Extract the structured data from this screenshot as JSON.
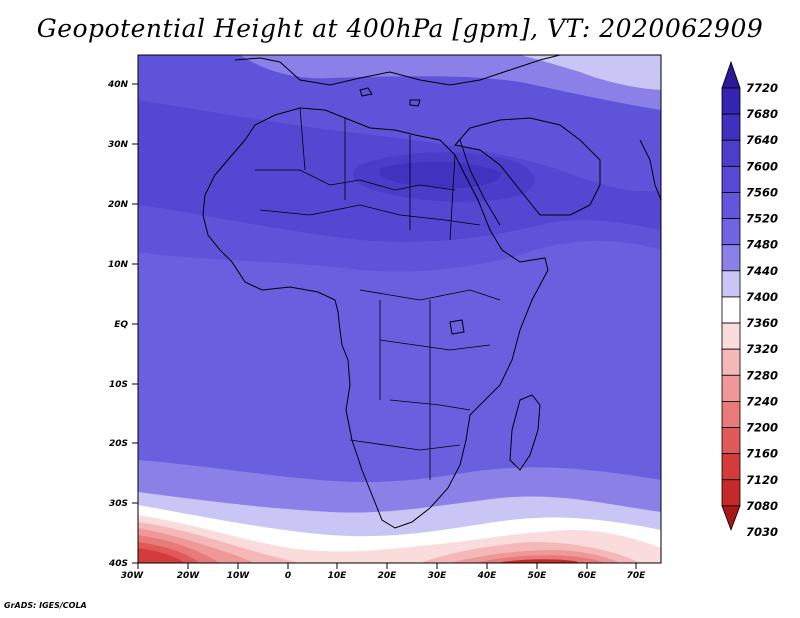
{
  "title": "Geopotential Height at 400hPa [gpm], VT: 2020062909",
  "credit": "GrADS: IGES/COLA",
  "lat_labels": [
    "40N",
    "30N",
    "20N",
    "10N",
    "EQ",
    "10S",
    "20S",
    "30S",
    "40S"
  ],
  "lon_labels": [
    "30W",
    "20W",
    "10W",
    "0",
    "10E",
    "20E",
    "30E",
    "40E",
    "50E",
    "60E",
    "70E"
  ],
  "colorbar": {
    "labels": [
      "7720",
      "7680",
      "7640",
      "7600",
      "7560",
      "7520",
      "7480",
      "7440",
      "7400",
      "7360",
      "7320",
      "7280",
      "7240",
      "7200",
      "7160",
      "7120",
      "7080",
      "7030"
    ],
    "colors": [
      "#2a1a9a",
      "#3424b0",
      "#3e31c0",
      "#4a3ecb",
      "#5649d4",
      "#6256dc",
      "#7064e2",
      "#8a80e8",
      "#c9c6f5",
      "#ffffff",
      "#fadcdc",
      "#f5b8b8",
      "#ee9898",
      "#e87a7a",
      "#e05a5a",
      "#d43c3c",
      "#c42a2a",
      "#a81616"
    ]
  },
  "map": {
    "lon_range": [
      -30,
      75
    ],
    "lat_range": [
      -40,
      45
    ],
    "field": "Geopotential Height",
    "level": "400hPa",
    "units": "gpm",
    "valid_time": "2020062909"
  }
}
